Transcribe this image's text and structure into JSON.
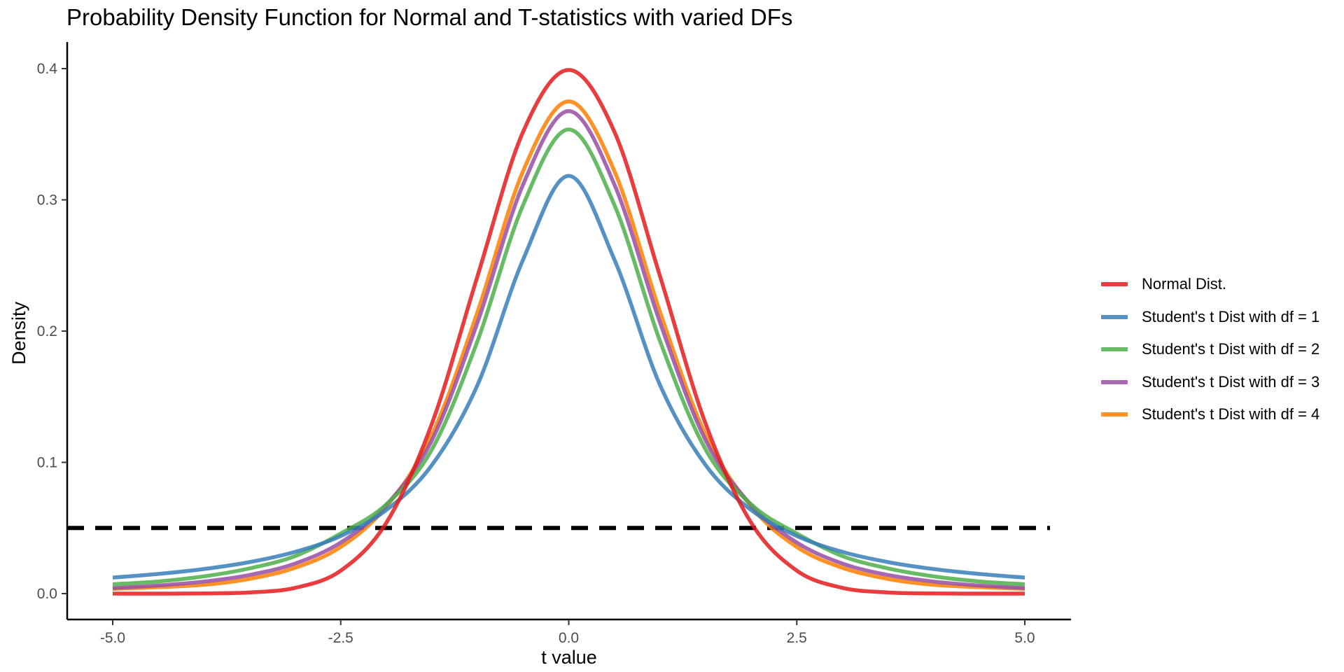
{
  "chart_data": {
    "type": "line",
    "title": "Probability Density Function for Normal and T-statistics with varied DFs",
    "xlabel": "t value",
    "ylabel": "Density",
    "xlim": [
      -5.5,
      5.5
    ],
    "ylim": [
      -0.02,
      0.42
    ],
    "x_ticks": [
      -5.0,
      -2.5,
      0.0,
      2.5,
      5.0
    ],
    "x_tick_labels": [
      "-5.0",
      "-2.5",
      "0.0",
      "2.5",
      "5.0"
    ],
    "y_ticks": [
      0.0,
      0.1,
      0.2,
      0.3,
      0.4
    ],
    "y_tick_labels": [
      "0.0",
      "0.1",
      "0.2",
      "0.3",
      "0.4"
    ],
    "x": [
      -5,
      -4.5,
      -4,
      -3.5,
      -3,
      -2.5,
      -2,
      -1.5,
      -1,
      -0.5,
      0,
      0.5,
      1,
      1.5,
      2,
      2.5,
      3,
      3.5,
      4,
      4.5,
      5
    ],
    "series": [
      {
        "name": "Normal Dist.",
        "color": "#E41A1C",
        "values": [
          1.5e-06,
          1.6e-05,
          0.00013,
          0.00087,
          0.0044,
          0.0175,
          0.054,
          0.1295,
          0.242,
          0.352,
          0.399,
          0.352,
          0.242,
          0.1295,
          0.054,
          0.0175,
          0.0044,
          0.00087,
          0.00013,
          1.6e-05,
          1.5e-06
        ]
      },
      {
        "name": "Student's t Dist with df = 1",
        "color": "#377EB8",
        "values": [
          0.0122,
          0.015,
          0.0187,
          0.024,
          0.0318,
          0.0439,
          0.0637,
          0.0979,
          0.159,
          0.2546,
          0.3183,
          0.2546,
          0.159,
          0.0979,
          0.0637,
          0.0439,
          0.0318,
          0.024,
          0.0187,
          0.015,
          0.0122
        ]
      },
      {
        "name": "Student's t Dist with df = 2",
        "color": "#4DAF4A",
        "values": [
          0.0071,
          0.0093,
          0.0131,
          0.0192,
          0.0286,
          0.0458,
          0.068,
          0.1098,
          0.1925,
          0.2962,
          0.3536,
          0.2962,
          0.1925,
          0.1098,
          0.068,
          0.0458,
          0.0286,
          0.0192,
          0.0131,
          0.0093,
          0.0071
        ]
      },
      {
        "name": "Student's t Dist with df = 3",
        "color": "#984EA3",
        "values": [
          0.0042,
          0.0062,
          0.0092,
          0.0142,
          0.0229,
          0.0389,
          0.0675,
          0.1168,
          0.2067,
          0.3118,
          0.3676,
          0.3118,
          0.2067,
          0.1168,
          0.0675,
          0.0389,
          0.0229,
          0.0142,
          0.0092,
          0.0062,
          0.0042
        ]
      },
      {
        "name": "Student's t Dist with df = 4",
        "color": "#FF7F00",
        "values": [
          0.0036,
          0.0049,
          0.0067,
          0.0112,
          0.0197,
          0.0355,
          0.0663,
          0.1209,
          0.2147,
          0.3221,
          0.375,
          0.3221,
          0.2147,
          0.1209,
          0.0663,
          0.0355,
          0.0197,
          0.0112,
          0.0067,
          0.0049,
          0.0036
        ]
      }
    ],
    "reference_line": {
      "y": 0.05,
      "style": "dashed",
      "color": "#000000"
    },
    "grid": false,
    "legend_position": "right"
  }
}
